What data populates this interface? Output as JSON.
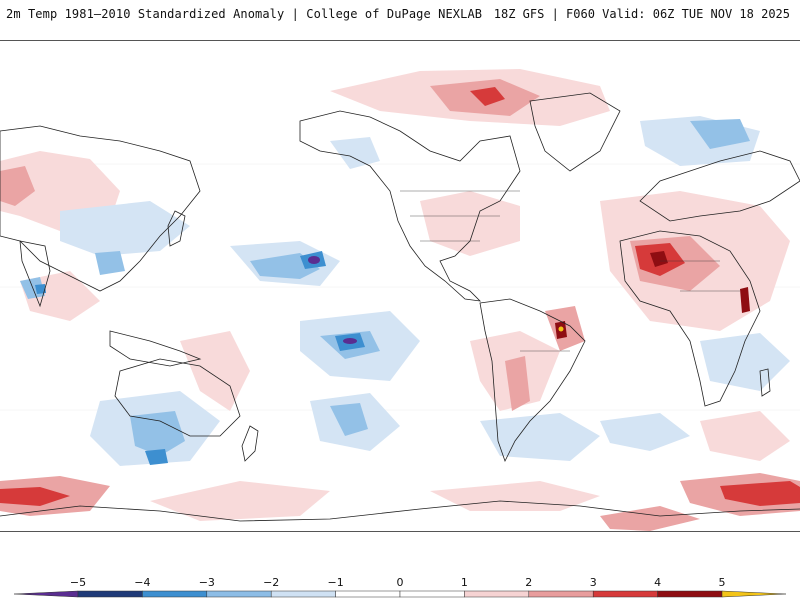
{
  "header": {
    "title": "2m Temp 1981–2010 Standardized Anomaly | College of DuPage NEXLAB",
    "run_info": "18Z GFS | F060 Valid: 06Z TUE NOV 18 2025"
  },
  "map": {
    "projection": "global equirectangular, Pacific-centered",
    "variable": "2m temperature standardized anomaly"
  },
  "colorbar": {
    "ticks": [
      "−5",
      "−4",
      "−3",
      "−2",
      "−1",
      "0",
      "1",
      "2",
      "3",
      "4",
      "5"
    ],
    "tick_values": [
      -5,
      -4,
      -3,
      -2,
      -1,
      0,
      1,
      2,
      3,
      4,
      5
    ],
    "colors": {
      "below_min": "#5a2d91",
      "n5_n4": "#1f3a78",
      "n4_n3": "#3d8fd0",
      "n3_n2": "#8dbde6",
      "n2_n1": "#cfe1f3",
      "n1_0": "#ffffff",
      "0_1": "#ffffff",
      "1_2": "#f6d3d3",
      "2_3": "#e89d9d",
      "3_4": "#d63a3a",
      "4_5": "#8e0d12",
      "above_max": "#f3c418"
    }
  }
}
